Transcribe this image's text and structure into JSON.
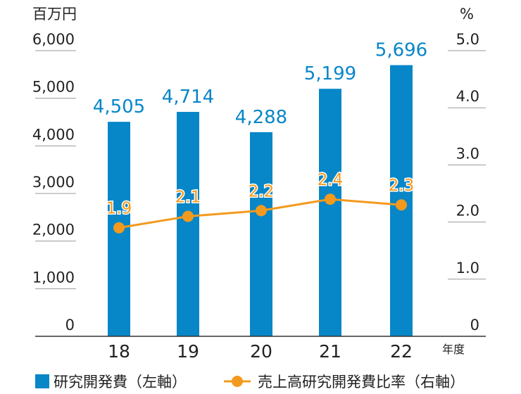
{
  "chart_data": {
    "type": "bar",
    "categories": [
      "18",
      "19",
      "20",
      "21",
      "22"
    ],
    "left_axis": {
      "unit": "百万円",
      "ylim": [
        0,
        6000
      ],
      "ticks": [
        "0",
        "1,000",
        "2,000",
        "3,000",
        "4,000",
        "5,000",
        "6,000"
      ]
    },
    "right_axis": {
      "unit": "%",
      "ylim": [
        0,
        5.0
      ],
      "ticks": [
        "0",
        "1.0",
        "2.0",
        "3.0",
        "4.0",
        "5.0"
      ]
    },
    "x_unit": "年度",
    "series": [
      {
        "name": "研究開発費（左軸）",
        "type": "bar",
        "axis": "left",
        "values": [
          4505,
          4714,
          4288,
          5199,
          5696
        ],
        "labels": [
          "4,505",
          "4,714",
          "4,288",
          "5,199",
          "5,696"
        ]
      },
      {
        "name": "売上高研究開発費比率（右軸）",
        "type": "line",
        "axis": "right",
        "values": [
          1.9,
          2.1,
          2.2,
          2.4,
          2.3
        ],
        "labels": [
          "1.9",
          "2.1",
          "2.2",
          "2.4",
          "2.3"
        ]
      }
    ],
    "colors": {
      "bar": "#0786c8",
      "line": "#f39a1e",
      "grid": "#9a9a9a",
      "axis": "#333333"
    },
    "legend_position": "bottom",
    "grid": true
  }
}
